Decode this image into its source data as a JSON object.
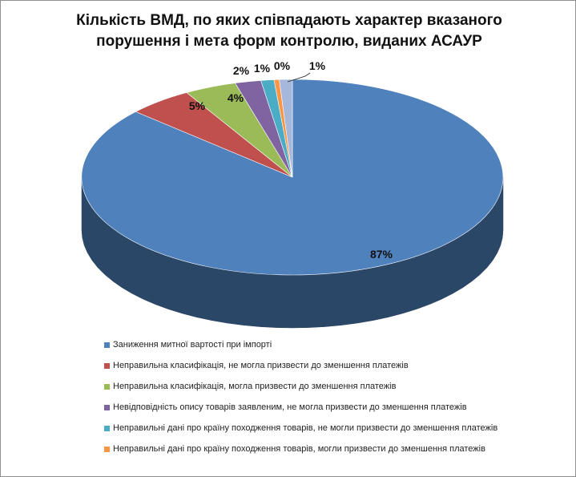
{
  "chart_data": {
    "type": "pie",
    "style": "3d",
    "title": "Кількість ВМД, по яких співпадають характер вказаного порушення і мета форм контролю, виданих АСАУР",
    "legend_position": "bottom",
    "slices": [
      {
        "label": "Заниження митної вартості при імпорті",
        "value": 87,
        "data_label": "87%",
        "color": "#4F81BD"
      },
      {
        "label": "Неправильна класифікація,  не могла призвести до зменшення платежів",
        "value": 5,
        "data_label": "5%",
        "color": "#C0504D"
      },
      {
        "label": "Неправильна класифікація,  могла призвести до зменшення платежів",
        "value": 4,
        "data_label": "4%",
        "color": "#9BBB59"
      },
      {
        "label": "Невідповідність опису товарів заявленим, не могла призвести до зменшення платежів",
        "value": 2,
        "data_label": "2%",
        "color": "#8064A2"
      },
      {
        "label": "Неправильні дані про країну походження товарів, не могли призвести до зменшення платежів",
        "value": 1,
        "data_label": "1%",
        "color": "#4BACC6"
      },
      {
        "label": "Неправильні дані про країну походження товарів, могли призвести до зменшення платежів",
        "value": 0.4,
        "data_label": "0%",
        "color": "#F79646"
      },
      {
        "label": "",
        "value": 1,
        "data_label": "1%",
        "color": "#A5B7DA"
      }
    ]
  }
}
